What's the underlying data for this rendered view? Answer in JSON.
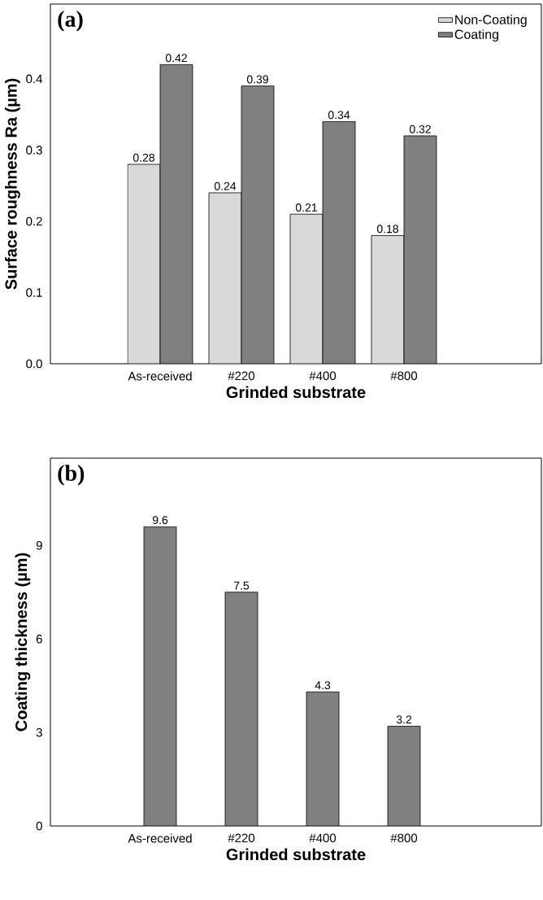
{
  "chart_data": [
    {
      "type": "bar",
      "title": "(a)",
      "xlabel": "Grinded substrate",
      "ylabel": "Surface roughness Ra (µm)",
      "categories": [
        "As-received",
        "#220",
        "#400",
        "#800"
      ],
      "series": [
        {
          "name": "Non-Coating",
          "color": "#d9d9d9",
          "values": [
            0.28,
            0.24,
            0.21,
            0.18
          ]
        },
        {
          "name": "Coating",
          "color": "#808080",
          "values": [
            0.42,
            0.39,
            0.34,
            0.32
          ]
        }
      ],
      "ylim": [
        0,
        0.505
      ],
      "yticks": [
        {
          "value": 0,
          "label": "0.0"
        },
        {
          "value": 0.1,
          "label": "0.1"
        },
        {
          "value": 0.2,
          "label": "0.2"
        },
        {
          "value": 0.3,
          "label": "0.3"
        },
        {
          "value": 0.4,
          "label": "0.4"
        }
      ],
      "data_labels": true,
      "legend": "top right"
    },
    {
      "type": "bar",
      "title": "(b)",
      "xlabel": "Grinded substrate",
      "ylabel": "Coating thickness (µm)",
      "categories": [
        "As-received",
        "#220",
        "#400",
        "#800"
      ],
      "values": [
        9.6,
        7.5,
        4.3,
        3.2
      ],
      "color": "#808080",
      "ylim": [
        0,
        11.8
      ],
      "yticks": [
        0,
        3,
        6,
        9
      ],
      "data_labels": true
    }
  ]
}
